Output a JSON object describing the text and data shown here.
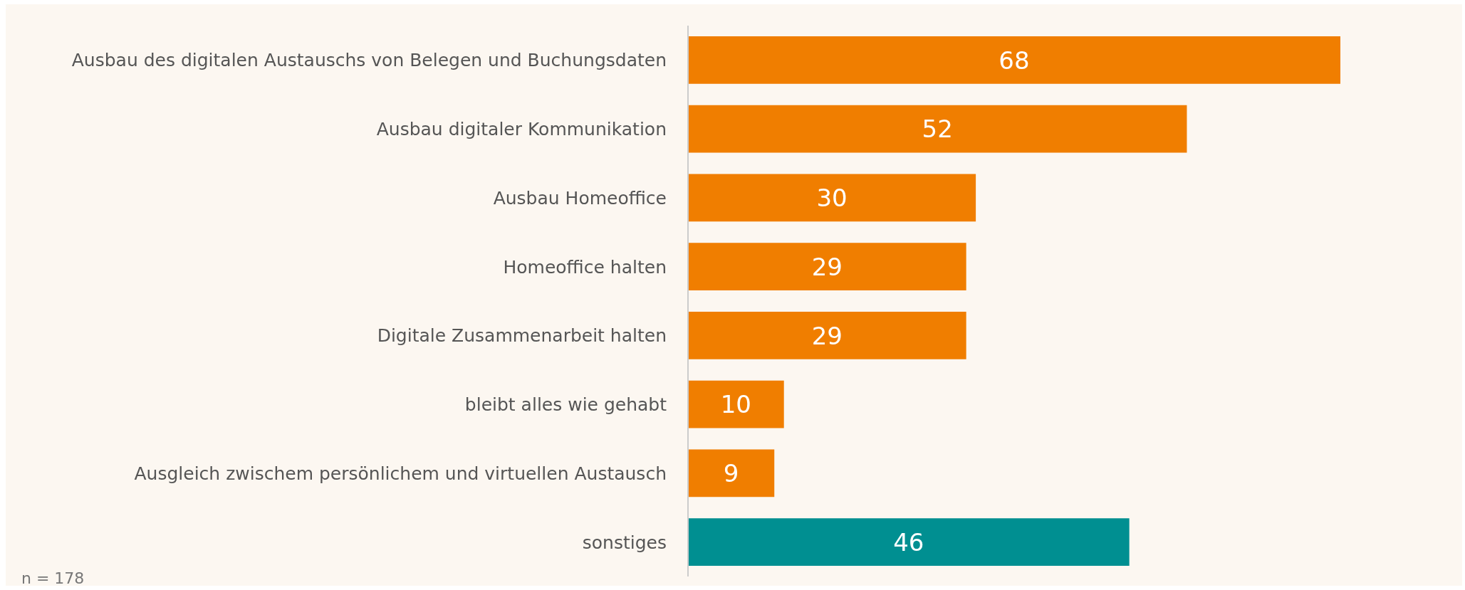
{
  "chart_data": {
    "type": "bar",
    "orientation": "horizontal",
    "categories": [
      "Ausbau des digitalen Austauschs von Belegen und Buchungsdaten",
      "Ausbau digitaler Kommunikation",
      "Ausbau Homeoffice",
      "Homeoffice halten",
      "Digitale Zusammenarbeit halten",
      "bleibt alles wie gehabt",
      "Ausgleich zwischem persönlichem und virtuellen Austausch",
      "sonstiges"
    ],
    "values": [
      68,
      52,
      30,
      29,
      29,
      10,
      9,
      46
    ],
    "colors": [
      "#f07e00",
      "#f07e00",
      "#f07e00",
      "#f07e00",
      "#f07e00",
      "#f07e00",
      "#f07e00",
      "#008f91"
    ],
    "data_labels": true,
    "annotations": [
      "n = 178"
    ]
  }
}
